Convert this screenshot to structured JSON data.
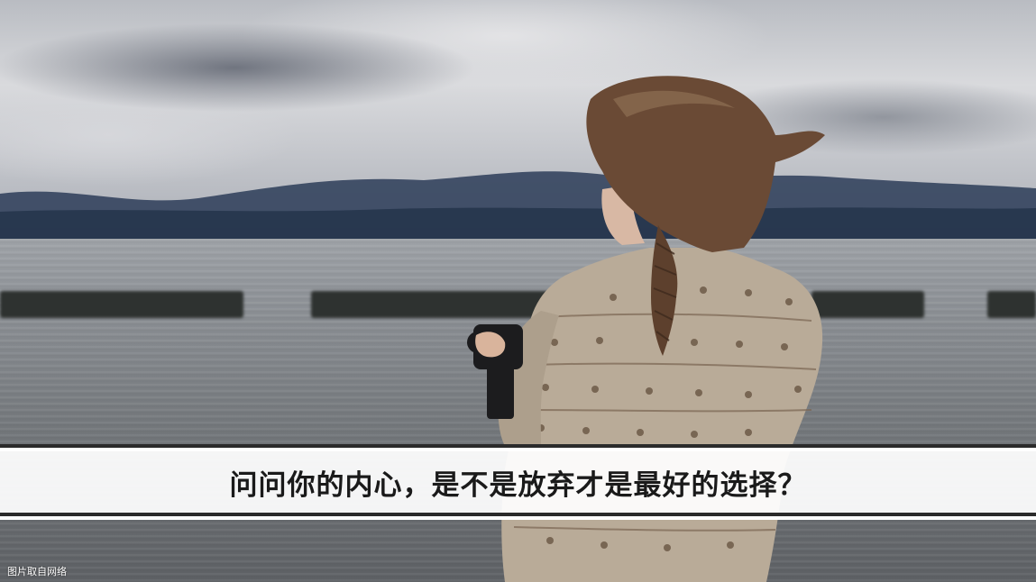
{
  "photo": {
    "subject": "girl-with-camera-by-lake",
    "colors": {
      "sky": "#d9dadd",
      "mountains": "#2f3f5a",
      "water": "#8d9196",
      "sweater": "#b9ab98",
      "hair": "#6a4a35"
    }
  },
  "caption": {
    "text": "问问你的内心，是不是放弃才是最好的选择？"
  },
  "credit": {
    "text": "图片取自网络"
  }
}
